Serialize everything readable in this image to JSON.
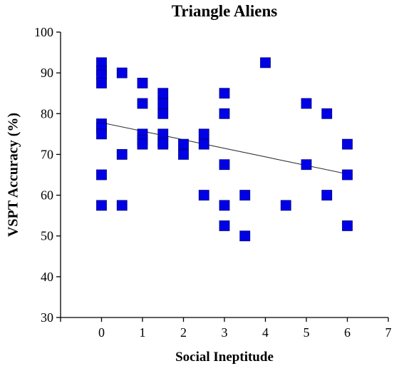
{
  "chart_data": {
    "type": "scatter",
    "title": "Triangle Aliens",
    "xlabel": "Social Ineptitude",
    "ylabel": "VSPT Accuracy (%)",
    "xlim": [
      -1,
      7
    ],
    "ylim": [
      30,
      100
    ],
    "xticks": [
      "0",
      "1",
      "2",
      "3",
      "4",
      "5",
      "6",
      "7"
    ],
    "yticks": [
      "30",
      "40",
      "50",
      "60",
      "70",
      "80",
      "90",
      "100"
    ],
    "grid": false,
    "legend": "none",
    "marker_color": "#0000e6",
    "marker_shape": "square",
    "points": [
      {
        "x": 0,
        "y": 92.5
      },
      {
        "x": 0,
        "y": 90.5
      },
      {
        "x": 0,
        "y": 89.5
      },
      {
        "x": 0,
        "y": 87.5
      },
      {
        "x": 0,
        "y": 77.5
      },
      {
        "x": 0,
        "y": 76.5
      },
      {
        "x": 0,
        "y": 75
      },
      {
        "x": 0,
        "y": 65
      },
      {
        "x": 0,
        "y": 57.5
      },
      {
        "x": 0.5,
        "y": 90
      },
      {
        "x": 0.5,
        "y": 70
      },
      {
        "x": 0.5,
        "y": 57.5
      },
      {
        "x": 1,
        "y": 87.5
      },
      {
        "x": 1,
        "y": 82.5
      },
      {
        "x": 1,
        "y": 75
      },
      {
        "x": 1,
        "y": 73.5
      },
      {
        "x": 1,
        "y": 72.5
      },
      {
        "x": 1.5,
        "y": 85
      },
      {
        "x": 1.5,
        "y": 82.5
      },
      {
        "x": 1.5,
        "y": 80
      },
      {
        "x": 1.5,
        "y": 75
      },
      {
        "x": 1.5,
        "y": 73
      },
      {
        "x": 1.5,
        "y": 72.5
      },
      {
        "x": 2,
        "y": 72.5
      },
      {
        "x": 2,
        "y": 70
      },
      {
        "x": 2.5,
        "y": 75
      },
      {
        "x": 2.5,
        "y": 72.5
      },
      {
        "x": 2.5,
        "y": 60
      },
      {
        "x": 3,
        "y": 85
      },
      {
        "x": 3,
        "y": 80
      },
      {
        "x": 3,
        "y": 67.5
      },
      {
        "x": 3,
        "y": 57.5
      },
      {
        "x": 3,
        "y": 52.5
      },
      {
        "x": 3.5,
        "y": 60
      },
      {
        "x": 3.5,
        "y": 50
      },
      {
        "x": 4,
        "y": 92.5
      },
      {
        "x": 4.5,
        "y": 57.5
      },
      {
        "x": 5,
        "y": 82.5
      },
      {
        "x": 5,
        "y": 67.5
      },
      {
        "x": 5.5,
        "y": 80
      },
      {
        "x": 5.5,
        "y": 60
      },
      {
        "x": 6,
        "y": 72.5
      },
      {
        "x": 6,
        "y": 65
      },
      {
        "x": 6,
        "y": 52.5
      }
    ],
    "trendline": {
      "x1": 0,
      "y1": 77.8,
      "x2": 6,
      "y2": 65.2,
      "color": "#333333"
    }
  }
}
